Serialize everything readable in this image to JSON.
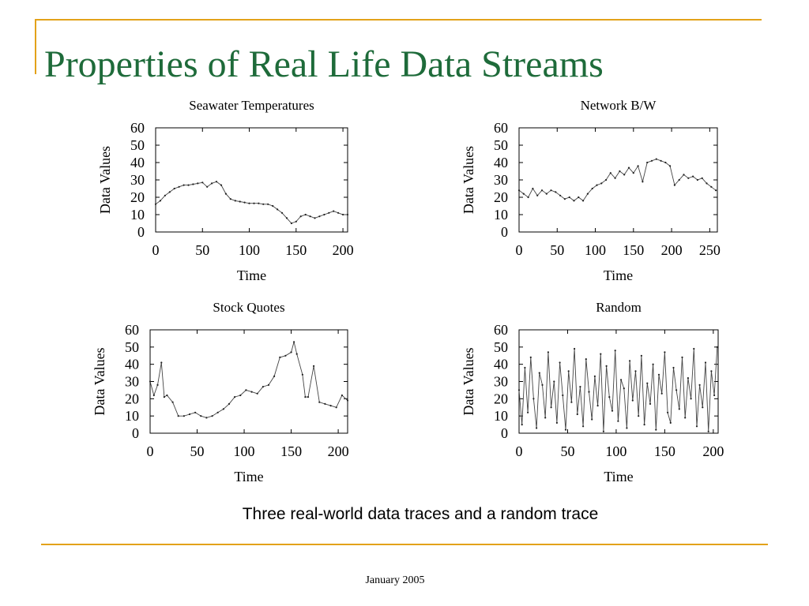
{
  "slide": {
    "title": "Properties of Real Life Data Streams",
    "caption": "Three real-world data traces and a random trace",
    "footer": "January 2005"
  },
  "colors": {
    "accent": "#E3A21A",
    "title": "#1E6B3A",
    "line": "#444444"
  },
  "chart_data": [
    {
      "type": "line",
      "title": "Seawater Temperatures",
      "xlabel": "Time",
      "ylabel": "Data Values",
      "xlim": [
        0,
        205
      ],
      "ylim": [
        0,
        60
      ],
      "xticks": [
        0,
        50,
        100,
        150,
        200
      ],
      "yticks": [
        0,
        10,
        20,
        30,
        40,
        50,
        60
      ],
      "series": [
        {
          "x": [
            0,
            5,
            10,
            15,
            20,
            25,
            30,
            35,
            40,
            45,
            50,
            55,
            60,
            65,
            70,
            75,
            80,
            85,
            90,
            95,
            100,
            105,
            110,
            115,
            120,
            125,
            130,
            135,
            140,
            145,
            150,
            155,
            160,
            165,
            170,
            175,
            180,
            185,
            190,
            195,
            200,
            205
          ],
          "values": [
            16,
            18,
            21,
            23,
            25,
            26,
            27,
            27,
            27.5,
            28,
            28.5,
            26,
            28,
            29,
            27,
            22,
            19,
            18,
            17.5,
            17,
            16.5,
            16.5,
            16.5,
            16,
            16,
            15,
            13,
            11,
            8,
            5,
            6,
            9,
            10,
            9,
            8,
            9,
            10,
            11,
            12,
            11,
            10,
            10
          ]
        }
      ]
    },
    {
      "type": "line",
      "title": "Network B/W",
      "xlabel": "Time",
      "ylabel": "Data Values",
      "xlim": [
        0,
        260
      ],
      "ylim": [
        0,
        60
      ],
      "xticks": [
        0,
        50,
        100,
        150,
        200,
        250
      ],
      "yticks": [
        0,
        10,
        20,
        30,
        40,
        50,
        60
      ],
      "series": [
        {
          "x": [
            0,
            6,
            12,
            18,
            24,
            30,
            36,
            42,
            48,
            54,
            60,
            66,
            72,
            78,
            84,
            90,
            96,
            102,
            108,
            114,
            120,
            126,
            132,
            138,
            144,
            150,
            156,
            162,
            168,
            174,
            180,
            186,
            192,
            198,
            204,
            210,
            216,
            222,
            228,
            234,
            240,
            246,
            252,
            258
          ],
          "values": [
            24,
            22,
            20,
            25,
            21,
            24,
            22,
            24,
            23,
            21,
            19,
            20,
            18,
            20,
            18,
            22,
            25,
            27,
            28,
            30,
            34,
            31,
            35,
            33,
            37,
            34,
            38,
            29,
            40,
            41,
            42,
            41,
            40,
            38,
            27,
            30,
            33,
            31,
            32,
            30,
            31,
            28,
            26,
            24
          ]
        }
      ]
    },
    {
      "type": "line",
      "title": "Stock Quotes",
      "xlabel": "Time",
      "ylabel": "Data Values",
      "xlim": [
        0,
        210
      ],
      "ylim": [
        0,
        60
      ],
      "xticks": [
        0,
        50,
        100,
        150,
        200
      ],
      "yticks": [
        0,
        10,
        20,
        30,
        40,
        50,
        60
      ],
      "series": [
        {
          "x": [
            0,
            4,
            8,
            12,
            15,
            18,
            24,
            30,
            36,
            42,
            48,
            54,
            60,
            66,
            72,
            78,
            84,
            90,
            96,
            102,
            108,
            114,
            120,
            126,
            132,
            138,
            144,
            150,
            153,
            156,
            162,
            165,
            168,
            174,
            180,
            186,
            192,
            198,
            204,
            210
          ],
          "values": [
            30,
            22,
            28,
            41,
            21,
            22,
            18,
            10,
            10,
            11,
            12,
            10,
            9,
            10,
            12,
            14,
            17,
            21,
            22,
            25,
            24,
            23,
            27,
            28,
            33,
            44,
            45,
            47,
            53,
            46,
            34,
            21,
            21,
            39,
            18,
            17,
            16,
            15,
            22,
            19
          ]
        }
      ]
    },
    {
      "type": "line",
      "title": "Random",
      "xlabel": "Time",
      "ylabel": "Data Values",
      "xlim": [
        0,
        205
      ],
      "ylim": [
        0,
        60
      ],
      "xticks": [
        0,
        50,
        100,
        150,
        200
      ],
      "yticks": [
        0,
        10,
        20,
        30,
        40,
        50,
        60
      ],
      "series": [
        {
          "x": [
            0,
            3,
            6,
            9,
            12,
            15,
            18,
            21,
            24,
            27,
            30,
            33,
            36,
            39,
            42,
            45,
            48,
            51,
            54,
            57,
            60,
            63,
            66,
            69,
            72,
            75,
            78,
            81,
            84,
            87,
            90,
            93,
            96,
            99,
            102,
            105,
            108,
            111,
            114,
            117,
            120,
            123,
            126,
            129,
            132,
            135,
            138,
            141,
            144,
            147,
            150,
            153,
            156,
            159,
            162,
            165,
            168,
            171,
            174,
            177,
            180,
            183,
            186,
            189,
            192,
            195,
            198,
            201,
            204
          ],
          "values": [
            25,
            5,
            38,
            12,
            44,
            20,
            3,
            35,
            28,
            9,
            47,
            15,
            30,
            6,
            41,
            22,
            2,
            36,
            18,
            49,
            11,
            27,
            4,
            43,
            24,
            8,
            33,
            16,
            46,
            1,
            39,
            21,
            13,
            48,
            7,
            31,
            26,
            3,
            42,
            19,
            36,
            10,
            45,
            5,
            29,
            17,
            40,
            2,
            34,
            23,
            47,
            12,
            6,
            38,
            25,
            14,
            44,
            9,
            32,
            20,
            49,
            4,
            28,
            15,
            41,
            1,
            36,
            22,
            50
          ]
        }
      ]
    }
  ]
}
